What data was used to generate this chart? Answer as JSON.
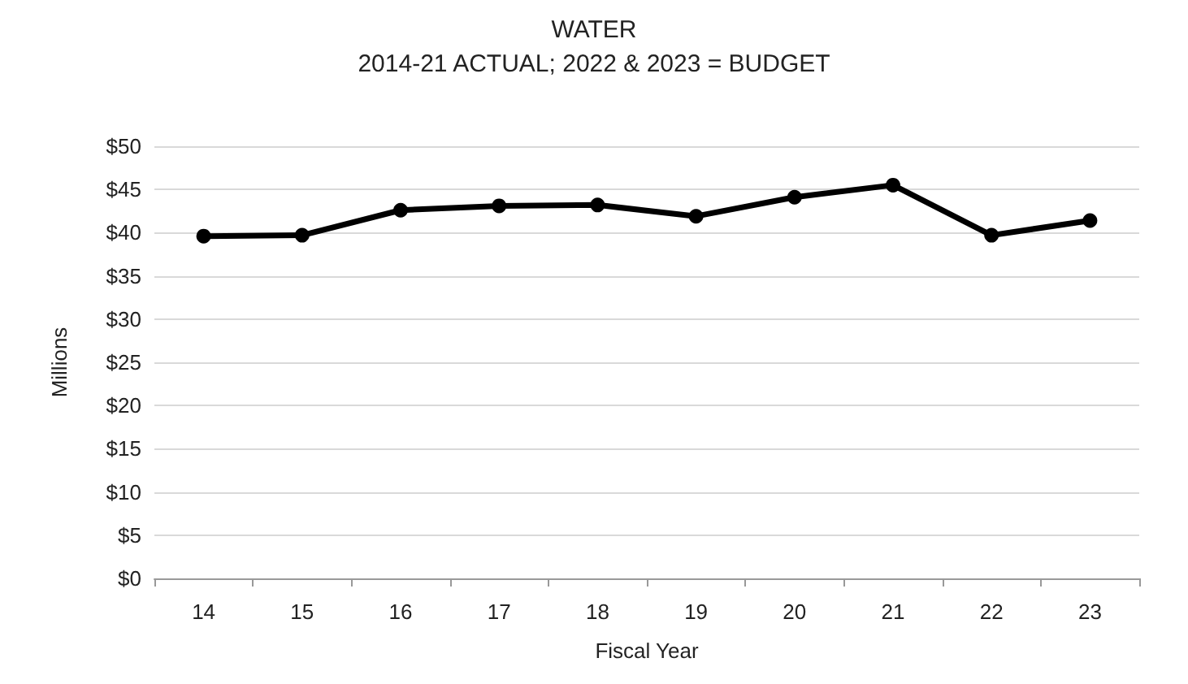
{
  "chart_data": {
    "type": "line",
    "title": "WATER",
    "subtitle": "2014-21 ACTUAL; 2022 & 2023 = BUDGET",
    "xlabel": "Fiscal Year",
    "ylabel": "Millions",
    "categories": [
      "14",
      "15",
      "16",
      "17",
      "18",
      "19",
      "20",
      "21",
      "22",
      "23"
    ],
    "series": [
      {
        "color": "#000000",
        "values": [
          39.6,
          39.7,
          42.6,
          43.1,
          43.2,
          41.9,
          44.1,
          45.5,
          39.7,
          41.4
        ]
      }
    ],
    "ylim": [
      0,
      50
    ],
    "yticks": [
      {
        "value": 0,
        "label": "$0"
      },
      {
        "value": 5,
        "label": "$5"
      },
      {
        "value": 10,
        "label": "$10"
      },
      {
        "value": 15,
        "label": "$15"
      },
      {
        "value": 20,
        "label": "$20"
      },
      {
        "value": 25,
        "label": "$25"
      },
      {
        "value": 30,
        "label": "$30"
      },
      {
        "value": 35,
        "label": "$35"
      },
      {
        "value": 40,
        "label": "$40"
      },
      {
        "value": 45,
        "label": "$45"
      },
      {
        "value": 50,
        "label": "$50"
      }
    ],
    "grid": "y",
    "marker": "circle",
    "line_style": "solid"
  }
}
